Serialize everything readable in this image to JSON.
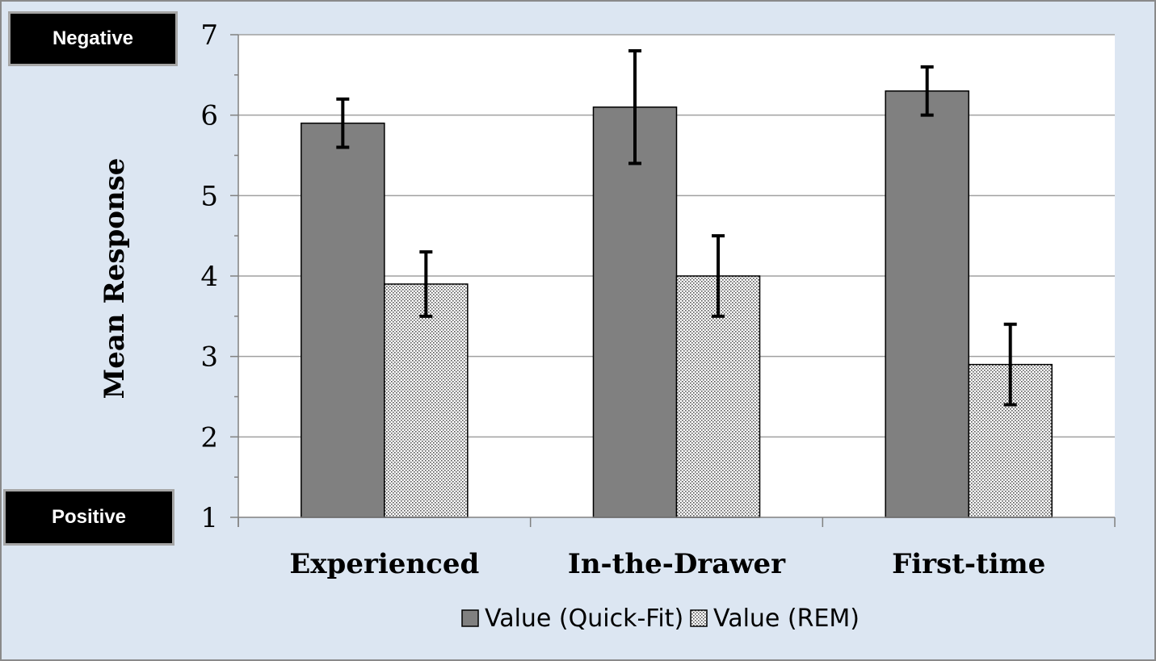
{
  "notes": {
    "top": "Negative",
    "bottom": "Positive"
  },
  "chart_data": {
    "type": "bar",
    "title": "",
    "xlabel": "",
    "ylabel": "Mean Response",
    "ylim": [
      1,
      7
    ],
    "yticks": [
      1,
      2,
      3,
      4,
      5,
      6,
      7
    ],
    "grid": true,
    "legend_position": "bottom",
    "categories": [
      "Experienced",
      "In-the-Drawer",
      "First-time"
    ],
    "series": [
      {
        "name": "Value (Quick-Fit)",
        "values": [
          5.9,
          6.1,
          6.3
        ],
        "error_low": [
          5.6,
          5.4,
          6.0
        ],
        "error_high": [
          6.2,
          6.8,
          6.6
        ],
        "color": "#808080",
        "pattern": "solid"
      },
      {
        "name": "Value (REM)",
        "values": [
          3.9,
          4.0,
          2.9
        ],
        "error_low": [
          3.5,
          3.5,
          2.4
        ],
        "error_high": [
          4.3,
          4.5,
          3.4
        ],
        "color": "#e6e6e6",
        "pattern": "dotted"
      }
    ]
  }
}
